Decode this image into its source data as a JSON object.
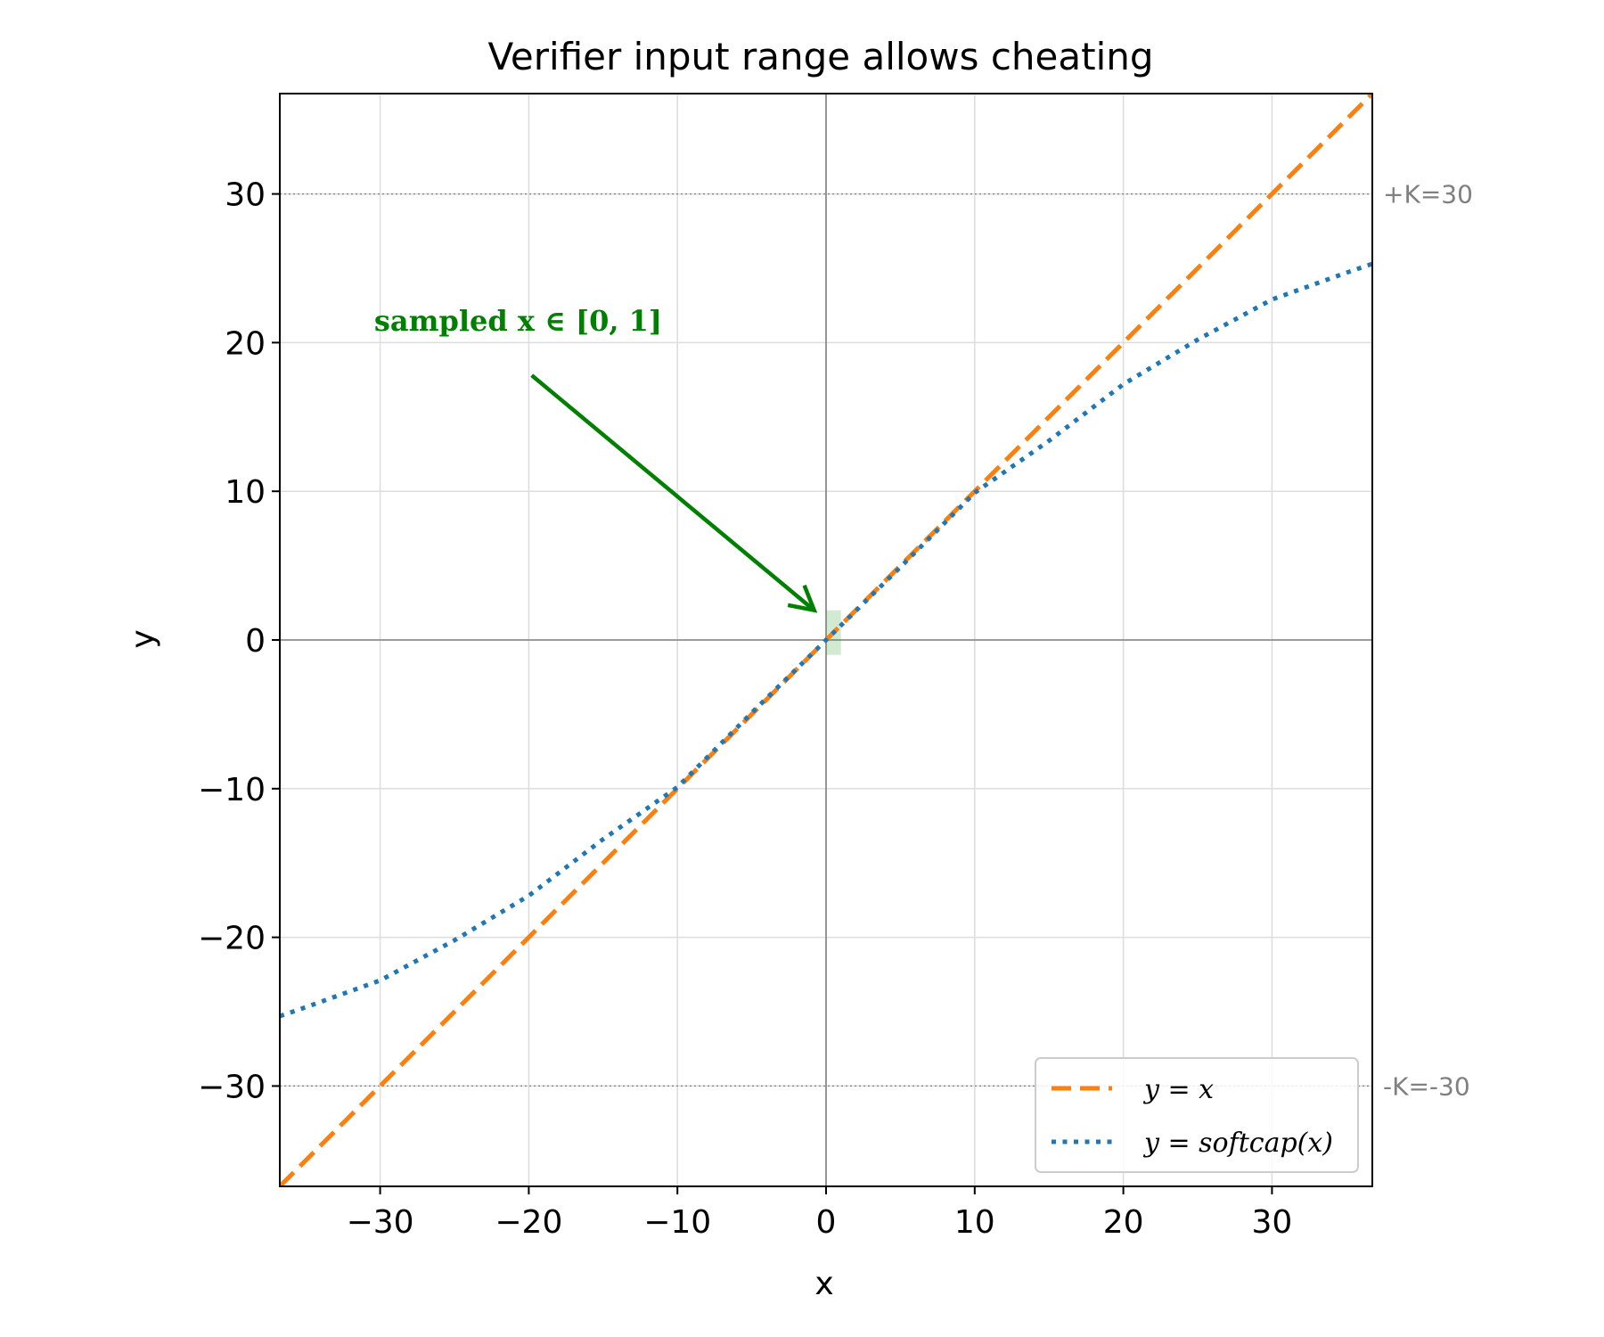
{
  "chart_data": {
    "type": "line",
    "title": "Verifier input range allows cheating",
    "xlabel": "x",
    "ylabel": "y",
    "xlim": [
      -36.75,
      36.75
    ],
    "ylim": [
      -36.75,
      36.75
    ],
    "xticks": [
      -30,
      -20,
      -10,
      0,
      10,
      20,
      30
    ],
    "yticks": [
      -30,
      -20,
      -10,
      0,
      10,
      20,
      30
    ],
    "xtick_labels": [
      "−30",
      "−20",
      "−10",
      "0",
      "10",
      "20",
      "30"
    ],
    "ytick_labels": [
      "−30",
      "−20",
      "−10",
      "0",
      "10",
      "20",
      "30"
    ],
    "grid": true,
    "legend_position": "bottom-right",
    "series": [
      {
        "name": "y = x",
        "style": "dashed",
        "color": "#ff7f0e",
        "x": [
          -36.75,
          36.75
        ],
        "y": [
          -36.75,
          36.75
        ]
      },
      {
        "name": "y = softcap(x)",
        "style": "dotted",
        "color": "#1f77b4",
        "x": [
          -36.75,
          -35,
          -30,
          -25,
          -20,
          -15,
          -10,
          -5,
          0,
          5,
          10,
          15,
          20,
          25,
          30,
          35,
          36.75
        ],
        "y": [
          -25.3,
          -24.7,
          -22.9,
          -20.2,
          -17.2,
          -13.4,
          -9.9,
          -4.9,
          0,
          4.9,
          9.9,
          13.4,
          17.2,
          20.2,
          22.9,
          24.7,
          25.3
        ]
      }
    ],
    "reference_lines": [
      {
        "y": 30,
        "label": "+K=30"
      },
      {
        "y": -30,
        "label": "-K=-30"
      }
    ],
    "highlight_region": {
      "x": [
        0,
        1
      ],
      "y": [
        -1,
        2
      ],
      "color": "#2ca02c"
    },
    "annotation": {
      "text": "sampled x ∈ [0, 1]",
      "text_at": [
        -30.4,
        20.8
      ],
      "arrow_from": [
        -19.8,
        17.8
      ],
      "arrow_to": [
        -0.8,
        2.0
      ],
      "color": "#008000"
    }
  }
}
